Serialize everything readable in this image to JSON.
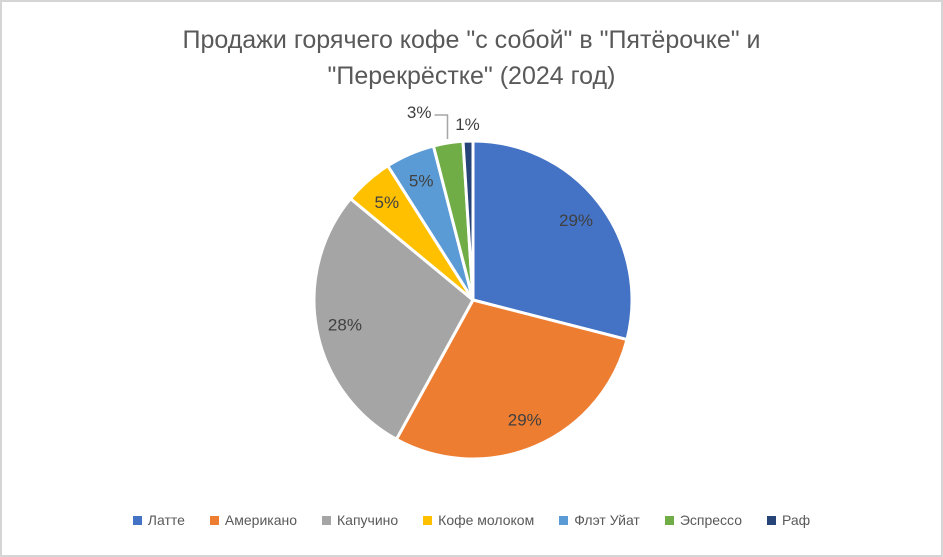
{
  "frame": {
    "background": "#ffffff",
    "border_color": "#d5d5d5"
  },
  "header": {
    "title_line1": "Продажи горячего кофе \"с собой\" в \"Пятёрочке\" и",
    "title_line2": "\"Перекрёстке\" (2024 год)",
    "title_color": "#595959"
  },
  "chart_data": {
    "type": "pie",
    "title": "Продажи горячего кофе \"с собой\" в \"Пятёрочке\" и \"Перекрёстке\" (2024 год)",
    "categories": [
      "Латте",
      "Американо",
      "Капучино",
      "Кофе молоком",
      "Флэт Уйат",
      "Эспрессо",
      "Раф"
    ],
    "values": [
      29,
      29,
      28,
      5,
      5,
      3,
      1
    ],
    "labels": [
      "29%",
      "29%",
      "28%",
      "5%",
      "5%",
      "3%",
      "1%"
    ],
    "unit": "%",
    "colors": [
      "#4472C4",
      "#ED7D31",
      "#A5A5A5",
      "#FFC000",
      "#5B9BD5",
      "#70AD47",
      "#264478"
    ],
    "start_angle_deg": 0,
    "direction": "clockwise",
    "legend_position": "bottom",
    "grid": "off",
    "label_color": "#404040",
    "legend_text_color": "#595959",
    "leader_line_color": "#A6A6A6",
    "slice_gap_color": "#FFFFFF",
    "label_placement": [
      "inside",
      "inside",
      "inside",
      "inside",
      "inside",
      "outside-leader",
      "outside"
    ]
  }
}
